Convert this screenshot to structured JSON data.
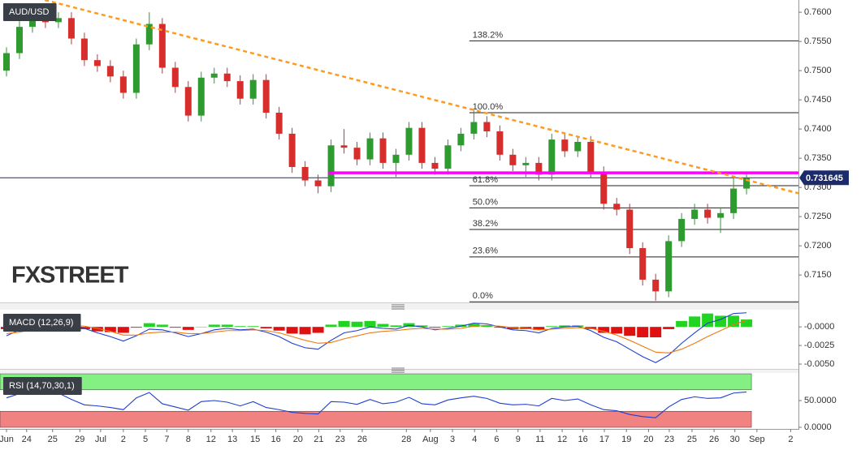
{
  "chart_data": [
    {
      "type": "candlestick",
      "title": "AUD/USD",
      "watermark": "FXSTREET",
      "x": [
        1,
        3,
        5,
        7,
        9,
        11,
        13,
        15,
        17,
        19,
        21,
        23,
        25,
        27,
        29,
        31,
        33,
        35,
        37,
        39,
        41,
        43,
        45,
        47,
        49,
        51,
        53,
        55,
        57,
        59,
        61,
        63,
        65,
        67,
        69,
        71,
        73,
        75,
        77,
        79,
        81,
        83,
        85,
        87,
        89,
        91,
        93,
        95,
        97,
        99,
        101,
        103,
        105,
        107,
        109,
        111,
        113,
        115
      ],
      "open": [
        0.75,
        0.753,
        0.7575,
        0.7588,
        0.7583,
        0.759,
        0.7555,
        0.7518,
        0.7508,
        0.749,
        0.7462,
        0.7545,
        0.758,
        0.7505,
        0.7472,
        0.7423,
        0.7488,
        0.7495,
        0.7482,
        0.7452,
        0.7484,
        0.7428,
        0.7392,
        0.7335,
        0.7312,
        0.7302,
        0.7372,
        0.7368,
        0.7348,
        0.7384,
        0.7342,
        0.7356,
        0.7402,
        0.7342,
        0.7332,
        0.7372,
        0.7392,
        0.7412,
        0.7396,
        0.7356,
        0.7338,
        0.7342,
        0.7322,
        0.7382,
        0.7362,
        0.7378,
        0.7326,
        0.7272,
        0.7262,
        0.7196,
        0.7142,
        0.7122,
        0.7208,
        0.7246,
        0.7262,
        0.7248,
        0.7256,
        0.7298
      ],
      "high": [
        0.754,
        0.7585,
        0.7598,
        0.7598,
        0.76,
        0.76,
        0.7565,
        0.7528,
        0.7518,
        0.75,
        0.7555,
        0.76,
        0.759,
        0.7515,
        0.7482,
        0.7498,
        0.7505,
        0.7505,
        0.7492,
        0.7494,
        0.7494,
        0.7438,
        0.7402,
        0.7345,
        0.7322,
        0.7382,
        0.74,
        0.7378,
        0.7394,
        0.7394,
        0.7366,
        0.7412,
        0.7412,
        0.7352,
        0.7382,
        0.7402,
        0.7432,
        0.7422,
        0.7406,
        0.7366,
        0.7352,
        0.7352,
        0.7392,
        0.7392,
        0.7388,
        0.7388,
        0.7336,
        0.7282,
        0.7272,
        0.7206,
        0.7152,
        0.7218,
        0.7256,
        0.7272,
        0.7272,
        0.7266,
        0.7318,
        0.7326
      ],
      "low": [
        0.749,
        0.752,
        0.7565,
        0.7573,
        0.7573,
        0.7545,
        0.7508,
        0.7498,
        0.748,
        0.7452,
        0.7452,
        0.7535,
        0.7495,
        0.7462,
        0.7413,
        0.7413,
        0.7478,
        0.7472,
        0.7442,
        0.7442,
        0.7418,
        0.7382,
        0.7325,
        0.7302,
        0.729,
        0.7292,
        0.7358,
        0.7338,
        0.7338,
        0.7332,
        0.7318,
        0.7346,
        0.7332,
        0.7322,
        0.7322,
        0.7362,
        0.7382,
        0.7386,
        0.7346,
        0.7328,
        0.7318,
        0.7312,
        0.7312,
        0.7352,
        0.7352,
        0.7316,
        0.7262,
        0.7252,
        0.7186,
        0.7132,
        0.7106,
        0.7112,
        0.7198,
        0.7236,
        0.7238,
        0.7222,
        0.7246,
        0.7288
      ],
      "close": [
        0.753,
        0.7575,
        0.7588,
        0.7583,
        0.759,
        0.7555,
        0.7518,
        0.7508,
        0.749,
        0.7462,
        0.7545,
        0.758,
        0.7505,
        0.7472,
        0.7423,
        0.7488,
        0.7495,
        0.7482,
        0.7452,
        0.7484,
        0.7428,
        0.7392,
        0.7335,
        0.7312,
        0.7302,
        0.7372,
        0.7368,
        0.7348,
        0.7384,
        0.7342,
        0.7356,
        0.7402,
        0.7342,
        0.7332,
        0.7372,
        0.7392,
        0.7412,
        0.7396,
        0.7356,
        0.7338,
        0.7342,
        0.7322,
        0.7382,
        0.7362,
        0.7378,
        0.7326,
        0.7272,
        0.7262,
        0.7196,
        0.7142,
        0.7122,
        0.7208,
        0.7246,
        0.7262,
        0.7248,
        0.7256,
        0.7298,
        0.7316
      ],
      "up_color": "#2f9a2f",
      "down_color": "#d62d2d",
      "xlim": [
        0,
        123
      ],
      "xticks": [
        {
          "value": 1.0,
          "label": "Jun"
        },
        {
          "value": 4.1,
          "label": "24"
        },
        {
          "value": 8.1,
          "label": "25"
        },
        {
          "value": 12.3,
          "label": "29"
        },
        {
          "value": 15.5,
          "label": "Jul"
        },
        {
          "value": 19.0,
          "label": "2"
        },
        {
          "value": 22.4,
          "label": "5"
        },
        {
          "value": 25.7,
          "label": "7"
        },
        {
          "value": 29.0,
          "label": "8"
        },
        {
          "value": 32.5,
          "label": "12"
        },
        {
          "value": 35.8,
          "label": "13"
        },
        {
          "value": 39.3,
          "label": "15"
        },
        {
          "value": 42.5,
          "label": "16"
        },
        {
          "value": 45.9,
          "label": "20"
        },
        {
          "value": 49.1,
          "label": "21"
        },
        {
          "value": 52.4,
          "label": "23"
        },
        {
          "value": 55.8,
          "label": "26"
        },
        {
          "value": 62.6,
          "label": "28"
        },
        {
          "value": 66.3,
          "label": "Aug"
        },
        {
          "value": 69.7,
          "label": "3"
        },
        {
          "value": 73.1,
          "label": "4"
        },
        {
          "value": 76.5,
          "label": "6"
        },
        {
          "value": 79.8,
          "label": "9"
        },
        {
          "value": 83.2,
          "label": "11"
        },
        {
          "value": 86.6,
          "label": "12"
        },
        {
          "value": 89.8,
          "label": "16"
        },
        {
          "value": 93.1,
          "label": "17"
        },
        {
          "value": 96.5,
          "label": "19"
        },
        {
          "value": 99.9,
          "label": "20"
        },
        {
          "value": 103.1,
          "label": "23"
        },
        {
          "value": 106.6,
          "label": "25"
        },
        {
          "value": 110.0,
          "label": "26"
        },
        {
          "value": 113.2,
          "label": "30"
        },
        {
          "value": 116.6,
          "label": "Sep"
        },
        {
          "value": 121.8,
          "label": "2"
        }
      ],
      "ylim": [
        0.7103,
        0.7621
      ],
      "yticks": [
        {
          "value": 0.76,
          "label": "0.7600"
        },
        {
          "value": 0.755,
          "label": "0.7550"
        },
        {
          "value": 0.75,
          "label": "0.7500"
        },
        {
          "value": 0.745,
          "label": "0.7450"
        },
        {
          "value": 0.74,
          "label": "0.7400"
        },
        {
          "value": 0.735,
          "label": "0.7350"
        },
        {
          "value": 0.73,
          "label": "0.7300"
        },
        {
          "value": 0.725,
          "label": "0.7250"
        },
        {
          "value": 0.72,
          "label": "0.7200"
        },
        {
          "value": 0.715,
          "label": "0.7150"
        }
      ],
      "last_price": 0.731645,
      "last_price_color": "#1c2b6b",
      "trendline": {
        "x": [
          6.9,
          123
        ],
        "y": [
          0.7621,
          0.729
        ],
        "color": "#ff9a1f"
      },
      "support_line": {
        "x": [
          50.6,
          123
        ],
        "y": [
          0.7325,
          0.7325
        ],
        "color": "#ff00ff"
      },
      "fibonacci": {
        "x": [
          72.3,
          123
        ],
        "names": [
          "138.2%",
          "100.0%",
          "61.8%",
          "50.0%",
          "38.2%",
          "23.6%",
          "0.0%"
        ],
        "prices": [
          0.7551,
          0.7428,
          0.7303,
          0.7265,
          0.7228,
          0.7181,
          0.7104
        ]
      }
    },
    {
      "type": "combo",
      "title": "MACD (12,26,9)",
      "ylim": [
        -0.00565,
        0.0022
      ],
      "yticks": [
        {
          "value": 0,
          "label": "-0.0000"
        },
        -0.0025,
        {
          "value": -0.005,
          "label": "-0.0050"
        }
      ],
      "series": [
        {
          "type": "bar",
          "color": "#22d422",
          "negative_color": "#e01010",
          "values": [
            -0.0003,
            0.0003,
            0.0006,
            0.0006,
            0.0005,
            0.0002,
            -0.0003,
            -0.0006,
            -0.0007,
            -0.0008,
            -0.0001,
            0.0005,
            0.0003,
            -0.0001,
            -0.0004,
            0.0,
            0.0003,
            0.0003,
            0.0001,
            0.0001,
            -0.0002,
            -0.0005,
            -0.0009,
            -0.001,
            -0.0008,
            0.0003,
            0.0008,
            0.0007,
            0.0008,
            0.0004,
            0.0002,
            0.0005,
            0.0002,
            -0.0001,
            0.0001,
            0.0003,
            0.0004,
            0.0002,
            -0.0001,
            -0.0003,
            -0.0003,
            -0.0004,
            0.0001,
            0.0002,
            0.0002,
            -0.0003,
            -0.0008,
            -0.0009,
            -0.0012,
            -0.0014,
            -0.0014,
            -0.0003,
            0.0008,
            0.0014,
            0.0018,
            0.0015,
            0.0015,
            0.001
          ]
        },
        {
          "type": "line",
          "color": "#1f3fcf",
          "values": [
            -0.0012,
            -0.0004,
            0.0002,
            0.0005,
            0.0006,
            0.0004,
            -0.0002,
            -0.0008,
            -0.0013,
            -0.0019,
            -0.0012,
            -0.0003,
            -0.0004,
            -0.0008,
            -0.0013,
            -0.0009,
            -0.0004,
            -0.0002,
            -0.0004,
            -0.0003,
            -0.0007,
            -0.0013,
            -0.0022,
            -0.0028,
            -0.003,
            -0.0018,
            -0.0008,
            -0.0005,
            0.0,
            -0.0002,
            -0.0003,
            0.0002,
            0.0,
            -0.0004,
            -0.0002,
            0.0001,
            0.0005,
            0.0004,
            0.0,
            -0.0004,
            -0.0005,
            -0.0008,
            -0.0002,
            0.0,
            0.0001,
            -0.0005,
            -0.0014,
            -0.002,
            -0.003,
            -0.004,
            -0.0048,
            -0.0038,
            -0.0022,
            -0.0008,
            0.0005,
            0.001,
            0.0018,
            0.0019
          ]
        },
        {
          "type": "line",
          "color": "#f07a12",
          "values": [
            -0.0009,
            -0.0007,
            -0.0004,
            -0.0001,
            0.0001,
            0.0002,
            0.0001,
            -0.0002,
            -0.0006,
            -0.0011,
            -0.0011,
            -0.0008,
            -0.0007,
            -0.0007,
            -0.0009,
            -0.0009,
            -0.0007,
            -0.0005,
            -0.0005,
            -0.0004,
            -0.0005,
            -0.0008,
            -0.0013,
            -0.0018,
            -0.0022,
            -0.0021,
            -0.0016,
            -0.0012,
            -0.0008,
            -0.0006,
            -0.0005,
            -0.0003,
            -0.0002,
            -0.0003,
            -0.0003,
            -0.0002,
            0.0001,
            0.0002,
            0.0001,
            -0.0001,
            -0.0002,
            -0.0004,
            -0.0003,
            -0.0002,
            -0.0001,
            -0.0002,
            -0.0006,
            -0.0011,
            -0.0018,
            -0.0026,
            -0.0034,
            -0.0035,
            -0.003,
            -0.0022,
            -0.0013,
            -0.0005,
            0.0003,
            0.0009
          ]
        }
      ]
    },
    {
      "type": "line",
      "title": "RSI (14,70,30,1)",
      "ylim": [
        -1.5,
        100
      ],
      "yticks": [
        {
          "value": 50,
          "label": "50.0000"
        },
        {
          "value": 0,
          "label": "0.0000"
        }
      ],
      "zones": [
        {
          "from": 70,
          "to": 100,
          "color": "#84f084"
        },
        {
          "from": 0,
          "to": 30,
          "color": "#f08282"
        }
      ],
      "series": [
        {
          "color": "#1f3fcf",
          "values": [
            55,
            63,
            65,
            63,
            64,
            52,
            42,
            40,
            37,
            33,
            55,
            65,
            44,
            38,
            32,
            48,
            50,
            47,
            40,
            48,
            37,
            33,
            28,
            26,
            25,
            48,
            47,
            43,
            52,
            44,
            47,
            56,
            44,
            42,
            51,
            55,
            58,
            54,
            45,
            42,
            43,
            40,
            54,
            50,
            53,
            42,
            33,
            31,
            24,
            20,
            18,
            38,
            52,
            57,
            54,
            55,
            64,
            66
          ]
        }
      ]
    }
  ]
}
